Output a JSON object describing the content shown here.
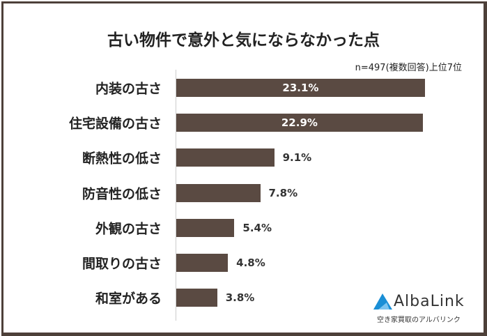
{
  "chart_data": {
    "type": "bar",
    "orientation": "horizontal",
    "title": "古い物件で意外と気にならなかった点",
    "note": "n=497(複数回答)上位7位",
    "categories": [
      "内装の古さ",
      "住宅設備の古さ",
      "断熱性の低さ",
      "防音性の低さ",
      "外観の古さ",
      "間取りの古さ",
      "和室がある"
    ],
    "values": [
      23.1,
      22.9,
      9.1,
      7.8,
      5.4,
      4.8,
      3.8
    ],
    "value_labels": [
      "23.1%",
      "22.9%",
      "9.1%",
      "7.8%",
      "5.4%",
      "4.8%",
      "3.8%"
    ],
    "unit": "%",
    "bar_color": "#5a4a42",
    "grid": false
  },
  "logo": {
    "name": "AlbaLink",
    "tagline": "空き家買取のアルバリンク",
    "color": "#1a8fd6"
  }
}
